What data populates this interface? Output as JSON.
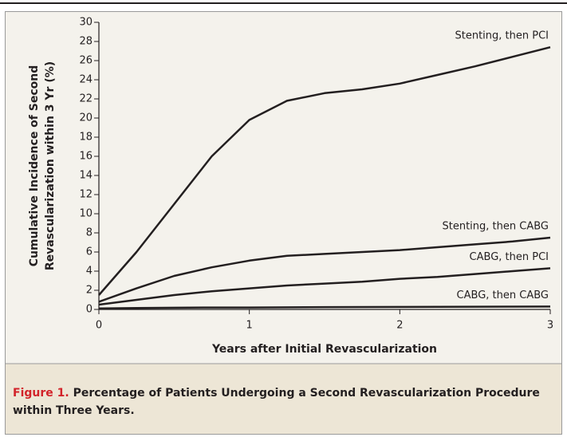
{
  "chart_data": {
    "type": "line",
    "xlabel": "Years after Initial Revascularization",
    "ylabel": [
      "Cumulative Incidence of Second",
      "Revascularization within 3 Yr (%)"
    ],
    "x": [
      0,
      0.25,
      0.5,
      0.75,
      1,
      1.25,
      1.5,
      1.75,
      2,
      2.25,
      2.5,
      2.75,
      3
    ],
    "series": [
      {
        "name": "Stenting, then PCI",
        "color": "#231f20",
        "values": [
          1.5,
          6,
          11,
          16,
          19.8,
          21.8,
          22.6,
          23,
          23.6,
          24.5,
          25.4,
          26.4,
          27.4
        ]
      },
      {
        "name": "Stenting, then CABG",
        "color": "#231f20",
        "values": [
          0.8,
          2.2,
          3.5,
          4.4,
          5.1,
          5.6,
          5.8,
          6,
          6.2,
          6.5,
          6.8,
          7.1,
          7.5
        ]
      },
      {
        "name": "CABG, then PCI",
        "color": "#231f20",
        "values": [
          0.5,
          1.0,
          1.5,
          1.9,
          2.2,
          2.5,
          2.7,
          2.9,
          3.2,
          3.4,
          3.7,
          4.0,
          4.3
        ]
      },
      {
        "name": "CABG, then CABG",
        "color": "#231f20",
        "values": [
          0.1,
          0.15,
          0.18,
          0.2,
          0.2,
          0.22,
          0.24,
          0.25,
          0.26,
          0.27,
          0.28,
          0.29,
          0.3
        ]
      }
    ],
    "xlim": [
      0,
      3
    ],
    "xticks": [
      0,
      1,
      2,
      3
    ],
    "ylim": [
      0,
      30
    ],
    "yticks": [
      0,
      2,
      4,
      6,
      8,
      10,
      12,
      14,
      16,
      18,
      20,
      22,
      24,
      26,
      28,
      30
    ]
  },
  "caption": {
    "label": "Figure 1.",
    "text": "Percentage of Patients Undergoing a Second Revascularization Procedure within Three Years."
  }
}
